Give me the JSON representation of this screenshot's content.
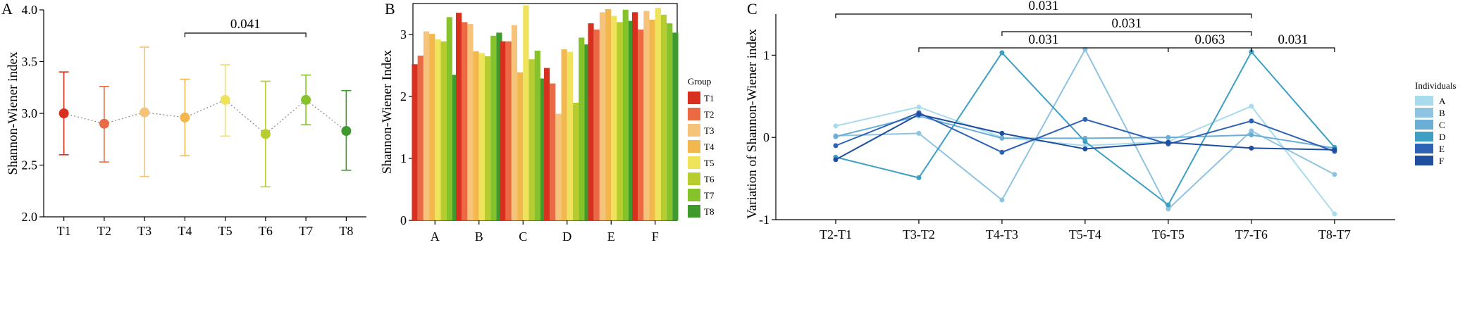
{
  "chart_data": [
    {
      "panel": "A",
      "type": "scatter",
      "title": "",
      "xlabel": "",
      "ylabel": "Shannon-Wiener index",
      "categories": [
        "T1",
        "T2",
        "T3",
        "T4",
        "T5",
        "T6",
        "T7",
        "T8"
      ],
      "mean": [
        3.0,
        2.9,
        3.01,
        2.96,
        3.13,
        2.8,
        3.13,
        2.83
      ],
      "upper": [
        3.4,
        3.26,
        3.64,
        3.33,
        3.47,
        3.31,
        3.37,
        3.22
      ],
      "lower": [
        2.6,
        2.53,
        2.39,
        2.59,
        2.78,
        2.29,
        2.89,
        2.45
      ],
      "colors": [
        "#d7301f",
        "#ec6a43",
        "#f6c37a",
        "#f2b84e",
        "#eee35b",
        "#b7cc2f",
        "#86c32a",
        "#3f9a2e"
      ],
      "ylim": [
        2.0,
        4.0
      ],
      "yticks": [
        "2.0",
        "2.5",
        "3.0",
        "3.5",
        "4.0"
      ],
      "significance": [
        {
          "from": "T4",
          "to": "T7",
          "label": "0.041"
        }
      ]
    },
    {
      "panel": "B",
      "type": "bar",
      "title": "",
      "xlabel": "",
      "ylabel": "Shannon-Wiener Index",
      "categories": [
        "A",
        "B",
        "C",
        "D",
        "E",
        "F"
      ],
      "ylim": [
        0,
        3.5
      ],
      "yticks": [
        "0",
        "1",
        "2",
        "3"
      ],
      "legend_title": "Group",
      "legend_position": "right",
      "series": [
        {
          "name": "T1",
          "color": "#d7301f",
          "values": [
            2.52,
            3.35,
            2.89,
            2.46,
            3.18,
            3.36
          ]
        },
        {
          "name": "T2",
          "color": "#ec6a43",
          "values": [
            2.66,
            3.2,
            2.89,
            2.21,
            3.08,
            3.08
          ]
        },
        {
          "name": "T3",
          "color": "#f6c37a",
          "values": [
            3.05,
            3.17,
            3.15,
            1.72,
            3.36,
            3.38
          ]
        },
        {
          "name": "T4",
          "color": "#f2b84e",
          "values": [
            3.01,
            2.73,
            2.39,
            2.76,
            3.41,
            3.24
          ]
        },
        {
          "name": "T5",
          "color": "#eee35b",
          "values": [
            2.92,
            2.7,
            3.47,
            2.72,
            3.3,
            3.43
          ]
        },
        {
          "name": "T6",
          "color": "#b7cc2f",
          "values": [
            2.89,
            2.65,
            2.6,
            1.9,
            3.2,
            3.32
          ]
        },
        {
          "name": "T7",
          "color": "#86c32a",
          "values": [
            3.28,
            2.98,
            2.74,
            2.95,
            3.4,
            3.18
          ]
        },
        {
          "name": "T8",
          "color": "#3f9a2e",
          "values": [
            2.35,
            3.03,
            2.29,
            2.84,
            3.22,
            3.03
          ]
        }
      ]
    },
    {
      "panel": "C",
      "type": "line",
      "title": "",
      "xlabel": "",
      "ylabel": "Variation of Shannon-Wiener index",
      "categories": [
        "T2-T1",
        "T3-T2",
        "T4-T3",
        "T5-T4",
        "T6-T5",
        "T7-T6",
        "T8-T7"
      ],
      "ylim": [
        -1.0,
        1.5
      ],
      "yticks": [
        "-1",
        "0",
        "1"
      ],
      "legend_title": "Individuals",
      "legend_position": "right",
      "series": [
        {
          "name": "A",
          "color": "#a8dcec",
          "values": [
            0.14,
            0.37,
            0.0,
            -0.1,
            -0.05,
            0.38,
            -0.93
          ]
        },
        {
          "name": "B",
          "color": "#8ec3e2",
          "values": [
            0.02,
            0.05,
            -0.76,
            1.07,
            -0.87,
            0.08,
            -0.45
          ]
        },
        {
          "name": "C",
          "color": "#6aaed6",
          "values": [
            0.01,
            0.26,
            -0.01,
            -0.01,
            0.0,
            0.03,
            -0.13
          ]
        },
        {
          "name": "D",
          "color": "#3e9fc4",
          "values": [
            -0.24,
            -0.49,
            1.03,
            -0.05,
            -0.82,
            1.04,
            -0.12
          ]
        },
        {
          "name": "E",
          "color": "#2e62b4",
          "values": [
            -0.1,
            0.3,
            -0.18,
            0.22,
            -0.08,
            0.2,
            -0.17
          ]
        },
        {
          "name": "F",
          "color": "#1f4e9f",
          "values": [
            -0.27,
            0.28,
            0.05,
            -0.14,
            -0.06,
            -0.13,
            -0.15
          ]
        }
      ],
      "significance": [
        {
          "from": "T2-T1",
          "to": "T7-T6",
          "label": "0.031"
        },
        {
          "from": "T4-T3",
          "to": "T7-T6",
          "label": "0.031"
        },
        {
          "from": "T3-T2",
          "to": "T6-T5",
          "label": "0.031"
        },
        {
          "from": "T6-T5",
          "to": "T7-T6",
          "label": "0.063"
        },
        {
          "from": "T7-T6",
          "to": "T8-T7",
          "label": "0.031"
        }
      ]
    }
  ]
}
